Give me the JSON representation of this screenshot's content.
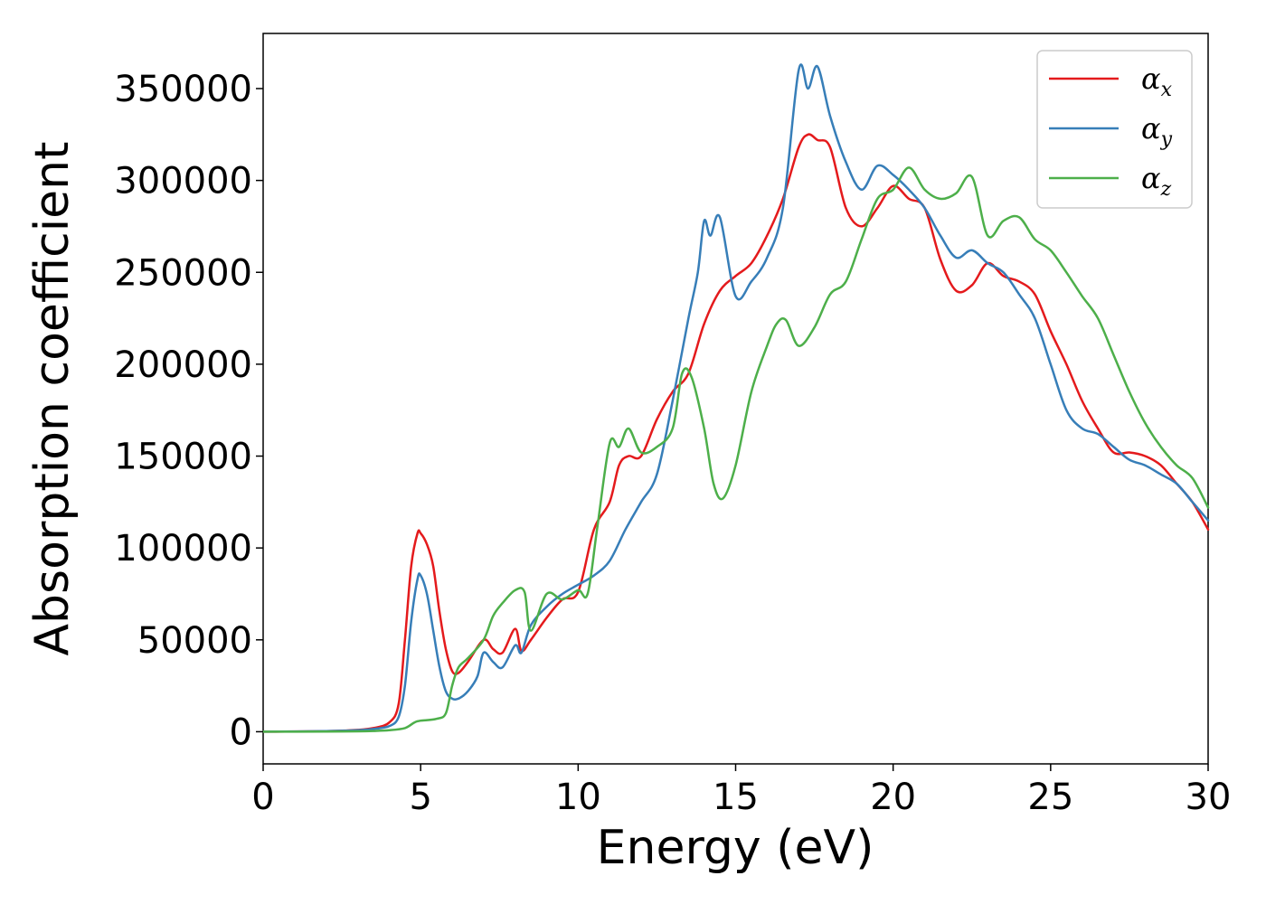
{
  "chart_data": {
    "type": "line",
    "xlabel": "Energy (eV)",
    "ylabel": "Absorption coefficient",
    "xlim": [
      0,
      30
    ],
    "ylim": [
      -17500,
      380000
    ],
    "xticks": [
      0,
      5,
      10,
      15,
      20,
      25,
      30
    ],
    "yticks": [
      0,
      50000,
      100000,
      150000,
      200000,
      250000,
      300000,
      350000
    ],
    "grid": false,
    "legend_position": "top-right",
    "series": [
      {
        "name": "α_x",
        "label_main": "α",
        "label_sub": "x",
        "color": "#e41a1c",
        "x": [
          0,
          2,
          3,
          3.5,
          4,
          4.3,
          4.5,
          4.7,
          4.9,
          5.0,
          5.2,
          5.4,
          5.6,
          5.8,
          6.0,
          6.2,
          6.5,
          7.0,
          7.3,
          7.6,
          8.0,
          8.2,
          8.5,
          9.0,
          9.5,
          10.0,
          10.5,
          11.0,
          11.3,
          11.6,
          12.0,
          12.5,
          13.0,
          13.5,
          14.0,
          14.5,
          15.0,
          15.5,
          16.0,
          16.5,
          17.0,
          17.3,
          17.6,
          18.0,
          18.5,
          19.0,
          19.5,
          20.0,
          20.5,
          21.0,
          21.5,
          22.0,
          22.5,
          23.0,
          23.5,
          24.0,
          24.5,
          25.0,
          25.5,
          26.0,
          26.5,
          27.0,
          27.5,
          28.0,
          28.5,
          29.0,
          29.5,
          30.0
        ],
        "y": [
          0,
          300,
          1000,
          2000,
          5000,
          15000,
          50000,
          90000,
          108000,
          108000,
          102000,
          90000,
          65000,
          45000,
          33000,
          32000,
          38000,
          50000,
          45000,
          43000,
          56000,
          44000,
          50000,
          62000,
          72000,
          76000,
          110000,
          125000,
          145000,
          150000,
          150000,
          170000,
          185000,
          195000,
          222000,
          240000,
          248000,
          255000,
          270000,
          290000,
          318000,
          325000,
          322000,
          318000,
          285000,
          275000,
          285000,
          297000,
          290000,
          285000,
          257000,
          240000,
          243000,
          255000,
          248000,
          245000,
          238000,
          218000,
          200000,
          180000,
          165000,
          152000,
          152000,
          150000,
          145000,
          135000,
          125000,
          110000
        ]
      },
      {
        "name": "α_y",
        "label_main": "α",
        "label_sub": "y",
        "color": "#377eb8",
        "x": [
          0,
          2,
          3,
          3.5,
          4,
          4.3,
          4.5,
          4.7,
          4.9,
          5.0,
          5.2,
          5.4,
          5.6,
          5.8,
          6.0,
          6.2,
          6.5,
          6.8,
          7.0,
          7.3,
          7.6,
          8.0,
          8.2,
          8.5,
          9.0,
          9.5,
          10.0,
          10.5,
          11.0,
          11.5,
          12.0,
          12.5,
          13.0,
          13.5,
          13.8,
          14.0,
          14.2,
          14.5,
          15.0,
          15.5,
          16.0,
          16.5,
          17.0,
          17.3,
          17.6,
          18.0,
          18.5,
          19.0,
          19.5,
          20.0,
          20.5,
          21.0,
          21.5,
          22.0,
          22.5,
          23.0,
          23.5,
          24.0,
          24.5,
          25.0,
          25.5,
          26.0,
          26.5,
          27.0,
          27.5,
          28.0,
          28.5,
          29.0,
          29.5,
          30.0
        ],
        "y": [
          0,
          300,
          800,
          1500,
          3000,
          8000,
          25000,
          60000,
          83000,
          85000,
          75000,
          55000,
          35000,
          22000,
          18000,
          18000,
          22000,
          30000,
          43000,
          38000,
          35000,
          47000,
          43000,
          58000,
          68000,
          75000,
          80000,
          85000,
          93000,
          110000,
          125000,
          140000,
          180000,
          225000,
          250000,
          278000,
          270000,
          280000,
          237000,
          245000,
          258000,
          285000,
          360000,
          350000,
          362000,
          335000,
          310000,
          295000,
          308000,
          303000,
          295000,
          285000,
          270000,
          258000,
          262000,
          255000,
          250000,
          238000,
          225000,
          200000,
          175000,
          165000,
          162000,
          155000,
          148000,
          145000,
          140000,
          135000,
          125000,
          115000
        ]
      },
      {
        "name": "α_z",
        "label_main": "α",
        "label_sub": "z",
        "color": "#4daf4a",
        "x": [
          0,
          2,
          3,
          3.5,
          4,
          4.5,
          4.8,
          5.0,
          5.5,
          5.8,
          6.0,
          6.2,
          6.5,
          7.0,
          7.3,
          7.6,
          8.0,
          8.3,
          8.5,
          9.0,
          9.5,
          10.0,
          10.3,
          10.6,
          11.0,
          11.3,
          11.6,
          12.0,
          12.5,
          13.0,
          13.3,
          13.6,
          14.0,
          14.3,
          14.6,
          15.0,
          15.5,
          16.0,
          16.3,
          16.6,
          17.0,
          17.5,
          18.0,
          18.5,
          19.0,
          19.5,
          20.0,
          20.5,
          21.0,
          21.5,
          22.0,
          22.5,
          23.0,
          23.5,
          24.0,
          24.5,
          25.0,
          25.5,
          26.0,
          26.5,
          27.0,
          27.5,
          28.0,
          28.5,
          29.0,
          29.5,
          30.0
        ],
        "y": [
          0,
          100,
          200,
          400,
          800,
          2000,
          5000,
          6000,
          7000,
          10000,
          25000,
          35000,
          40000,
          50000,
          63000,
          70000,
          77000,
          76000,
          55000,
          75000,
          72000,
          77000,
          75000,
          110000,
          157000,
          155000,
          165000,
          152000,
          155000,
          165000,
          195000,
          193000,
          165000,
          135000,
          127000,
          145000,
          185000,
          210000,
          222000,
          224000,
          210000,
          220000,
          238000,
          245000,
          268000,
          290000,
          295000,
          307000,
          295000,
          290000,
          293000,
          302000,
          270000,
          278000,
          280000,
          268000,
          262000,
          250000,
          237000,
          225000,
          205000,
          185000,
          168000,
          155000,
          145000,
          138000,
          122000
        ]
      }
    ]
  }
}
